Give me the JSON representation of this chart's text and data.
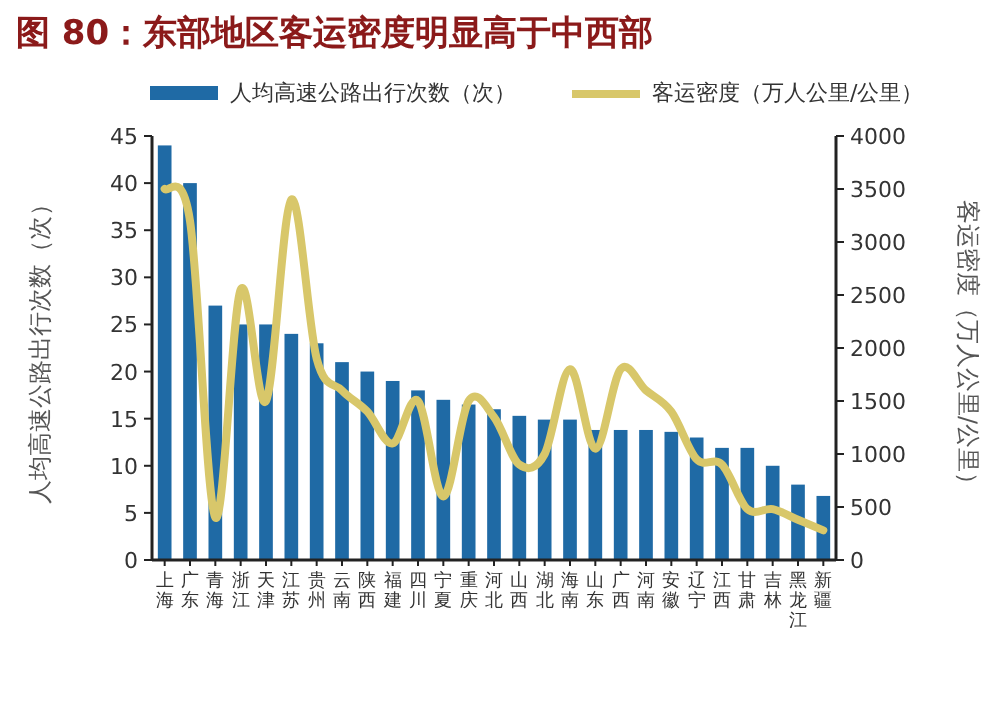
{
  "chart_data": {
    "type": "bar",
    "title": "图 80：东部地区客运密度明显高于中西部",
    "categories": [
      "上海",
      "广东",
      "青海",
      "浙江",
      "天津",
      "江苏",
      "贵州",
      "云南",
      "陕西",
      "福建",
      "四川",
      "宁夏",
      "重庆",
      "河北",
      "山西",
      "湖北",
      "海南",
      "山东",
      "广西",
      "河南",
      "安徽",
      "辽宁",
      "江西",
      "甘肃",
      "吉林",
      "黑龙江",
      "新疆"
    ],
    "series": [
      {
        "name": "人均高速公路出行次数（次）",
        "color": "#1f6aa5",
        "values": [
          44,
          40,
          27,
          25,
          25,
          24,
          23,
          21,
          20,
          19,
          18,
          17,
          16.5,
          16,
          15.3,
          14.9,
          14.9,
          13.8,
          13.8,
          13.8,
          13.6,
          13,
          11.9,
          11.9,
          10,
          8,
          6.8
        ]
      },
      {
        "name": "客运密度（万人公里/公里）",
        "type": "line",
        "axis": "y2",
        "color": "#d8c76a",
        "values": [
          3500,
          3200,
          400,
          2550,
          1500,
          3400,
          1900,
          1600,
          1400,
          1100,
          1500,
          600,
          1500,
          1350,
          900,
          1000,
          1800,
          1050,
          1800,
          1600,
          1400,
          950,
          900,
          480,
          480,
          380,
          280
        ]
      }
    ],
    "ylim": [
      0,
      45
    ],
    "yticks": [
      0,
      5,
      10,
      15,
      20,
      25,
      30,
      35,
      40,
      45
    ],
    "y2lim": [
      0,
      4000
    ],
    "y2ticks": [
      0,
      500,
      1000,
      1500,
      2000,
      2500,
      3000,
      3500,
      4000
    ],
    "ylabel": "人均高速公路出行次数（次）",
    "y2label": "客运密度（万人公里/公里）",
    "legend": "top"
  }
}
